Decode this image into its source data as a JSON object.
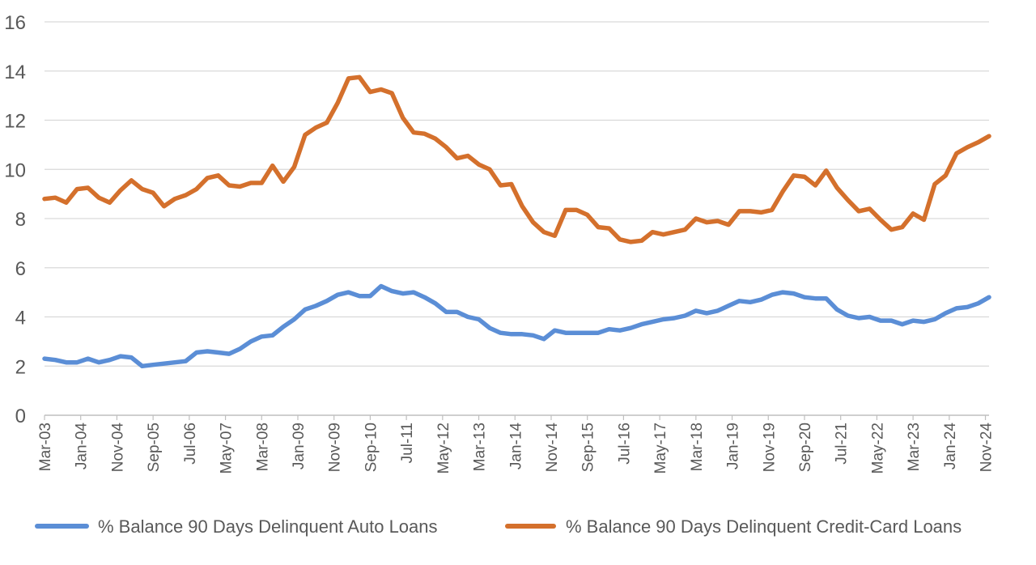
{
  "chart_data": {
    "type": "line",
    "title": "",
    "xlabel": "",
    "ylabel": "",
    "ylim": [
      0,
      16
    ],
    "y_ticks": [
      0,
      2,
      4,
      6,
      8,
      10,
      12,
      14,
      16
    ],
    "grid": true,
    "legend_position": "bottom",
    "x_start": "Mar-03",
    "x_end": "Dec-24",
    "x_tick_labels": [
      "Mar-03",
      "Jan-04",
      "Nov-04",
      "Sep-05",
      "Jul-06",
      "May-07",
      "Mar-08",
      "Jan-09",
      "Nov-09",
      "Sep-10",
      "Jul-11",
      "May-12",
      "Mar-13",
      "Jan-14",
      "Nov-14",
      "Sep-15",
      "Jul-16",
      "May-17",
      "Mar-18",
      "Jan-19",
      "Nov-19",
      "Sep-20",
      "Jul-21",
      "May-22",
      "Mar-23",
      "Jan-24",
      "Nov-24"
    ],
    "series": [
      {
        "name": "% Balance 90 Days Delinquent Auto Loans",
        "color": "#5B8ED6",
        "points": [
          [
            "Mar-03",
            2.3
          ],
          [
            "Jun-03",
            2.25
          ],
          [
            "Sep-03",
            2.15
          ],
          [
            "Dec-03",
            2.15
          ],
          [
            "Mar-04",
            2.3
          ],
          [
            "Jun-04",
            2.15
          ],
          [
            "Sep-04",
            2.25
          ],
          [
            "Dec-04",
            2.4
          ],
          [
            "Mar-05",
            2.35
          ],
          [
            "Jun-05",
            2.0
          ],
          [
            "Sep-05",
            2.05
          ],
          [
            "Dec-05",
            2.1
          ],
          [
            "Mar-06",
            2.15
          ],
          [
            "Jun-06",
            2.2
          ],
          [
            "Sep-06",
            2.55
          ],
          [
            "Dec-06",
            2.6
          ],
          [
            "Mar-07",
            2.55
          ],
          [
            "Jun-07",
            2.5
          ],
          [
            "Sep-07",
            2.7
          ],
          [
            "Dec-07",
            3.0
          ],
          [
            "Mar-08",
            3.2
          ],
          [
            "Jun-08",
            3.25
          ],
          [
            "Sep-08",
            3.6
          ],
          [
            "Dec-08",
            3.9
          ],
          [
            "Mar-09",
            4.3
          ],
          [
            "Jun-09",
            4.45
          ],
          [
            "Sep-09",
            4.65
          ],
          [
            "Dec-09",
            4.9
          ],
          [
            "Mar-10",
            5.0
          ],
          [
            "Jun-10",
            4.85
          ],
          [
            "Sep-10",
            4.85
          ],
          [
            "Dec-10",
            5.25
          ],
          [
            "Mar-11",
            5.05
          ],
          [
            "Jun-11",
            4.95
          ],
          [
            "Sep-11",
            5.0
          ],
          [
            "Dec-11",
            4.8
          ],
          [
            "Mar-12",
            4.55
          ],
          [
            "Jun-12",
            4.2
          ],
          [
            "Sep-12",
            4.2
          ],
          [
            "Dec-12",
            4.0
          ],
          [
            "Mar-13",
            3.9
          ],
          [
            "Jun-13",
            3.55
          ],
          [
            "Sep-13",
            3.35
          ],
          [
            "Dec-13",
            3.3
          ],
          [
            "Mar-14",
            3.3
          ],
          [
            "Jun-14",
            3.25
          ],
          [
            "Sep-14",
            3.1
          ],
          [
            "Dec-14",
            3.45
          ],
          [
            "Mar-15",
            3.35
          ],
          [
            "Jun-15",
            3.35
          ],
          [
            "Sep-15",
            3.35
          ],
          [
            "Dec-15",
            3.35
          ],
          [
            "Mar-16",
            3.5
          ],
          [
            "Jun-16",
            3.45
          ],
          [
            "Sep-16",
            3.55
          ],
          [
            "Dec-16",
            3.7
          ],
          [
            "Mar-17",
            3.8
          ],
          [
            "Jun-17",
            3.9
          ],
          [
            "Sep-17",
            3.95
          ],
          [
            "Dec-17",
            4.05
          ],
          [
            "Mar-18",
            4.25
          ],
          [
            "Jun-18",
            4.15
          ],
          [
            "Sep-18",
            4.25
          ],
          [
            "Dec-18",
            4.45
          ],
          [
            "Mar-19",
            4.65
          ],
          [
            "Jun-19",
            4.6
          ],
          [
            "Sep-19",
            4.7
          ],
          [
            "Dec-19",
            4.9
          ],
          [
            "Mar-20",
            5.0
          ],
          [
            "Jun-20",
            4.95
          ],
          [
            "Sep-20",
            4.8
          ],
          [
            "Dec-20",
            4.75
          ],
          [
            "Mar-21",
            4.75
          ],
          [
            "Jun-21",
            4.3
          ],
          [
            "Sep-21",
            4.05
          ],
          [
            "Dec-21",
            3.95
          ],
          [
            "Mar-22",
            4.0
          ],
          [
            "Jun-22",
            3.85
          ],
          [
            "Sep-22",
            3.85
          ],
          [
            "Dec-22",
            3.7
          ],
          [
            "Mar-23",
            3.85
          ],
          [
            "Jun-23",
            3.8
          ],
          [
            "Sep-23",
            3.9
          ],
          [
            "Dec-23",
            4.15
          ],
          [
            "Mar-24",
            4.35
          ],
          [
            "Jun-24",
            4.4
          ],
          [
            "Sep-24",
            4.55
          ],
          [
            "Dec-24",
            4.8
          ]
        ]
      },
      {
        "name": "% Balance 90 Days Delinquent Credit-Card Loans",
        "color": "#D4702C",
        "points": [
          [
            "Mar-03",
            8.8
          ],
          [
            "Jun-03",
            8.85
          ],
          [
            "Sep-03",
            8.65
          ],
          [
            "Dec-03",
            9.2
          ],
          [
            "Mar-04",
            9.25
          ],
          [
            "Jun-04",
            8.85
          ],
          [
            "Sep-04",
            8.65
          ],
          [
            "Dec-04",
            9.15
          ],
          [
            "Mar-05",
            9.55
          ],
          [
            "Jun-05",
            9.2
          ],
          [
            "Sep-05",
            9.05
          ],
          [
            "Dec-05",
            8.5
          ],
          [
            "Mar-06",
            8.8
          ],
          [
            "Jun-06",
            8.95
          ],
          [
            "Sep-06",
            9.2
          ],
          [
            "Dec-06",
            9.65
          ],
          [
            "Mar-07",
            9.75
          ],
          [
            "Jun-07",
            9.35
          ],
          [
            "Sep-07",
            9.3
          ],
          [
            "Dec-07",
            9.45
          ],
          [
            "Mar-08",
            9.45
          ],
          [
            "Jun-08",
            10.15
          ],
          [
            "Sep-08",
            9.5
          ],
          [
            "Dec-08",
            10.1
          ],
          [
            "Mar-09",
            11.4
          ],
          [
            "Jun-09",
            11.7
          ],
          [
            "Sep-09",
            11.9
          ],
          [
            "Dec-09",
            12.7
          ],
          [
            "Mar-10",
            13.7
          ],
          [
            "Jun-10",
            13.75
          ],
          [
            "Sep-10",
            13.15
          ],
          [
            "Dec-10",
            13.25
          ],
          [
            "Mar-11",
            13.1
          ],
          [
            "Jun-11",
            12.1
          ],
          [
            "Sep-11",
            11.5
          ],
          [
            "Dec-11",
            11.45
          ],
          [
            "Mar-12",
            11.25
          ],
          [
            "Jun-12",
            10.9
          ],
          [
            "Sep-12",
            10.45
          ],
          [
            "Dec-12",
            10.55
          ],
          [
            "Mar-13",
            10.2
          ],
          [
            "Jun-13",
            10.0
          ],
          [
            "Sep-13",
            9.35
          ],
          [
            "Dec-13",
            9.4
          ],
          [
            "Mar-14",
            8.5
          ],
          [
            "Jun-14",
            7.85
          ],
          [
            "Sep-14",
            7.45
          ],
          [
            "Dec-14",
            7.3
          ],
          [
            "Mar-15",
            8.35
          ],
          [
            "Jun-15",
            8.35
          ],
          [
            "Sep-15",
            8.15
          ],
          [
            "Dec-15",
            7.65
          ],
          [
            "Mar-16",
            7.6
          ],
          [
            "Jun-16",
            7.15
          ],
          [
            "Sep-16",
            7.05
          ],
          [
            "Dec-16",
            7.1
          ],
          [
            "Mar-17",
            7.45
          ],
          [
            "Jun-17",
            7.35
          ],
          [
            "Sep-17",
            7.45
          ],
          [
            "Dec-17",
            7.55
          ],
          [
            "Mar-18",
            8.0
          ],
          [
            "Jun-18",
            7.85
          ],
          [
            "Sep-18",
            7.9
          ],
          [
            "Dec-18",
            7.75
          ],
          [
            "Mar-19",
            8.3
          ],
          [
            "Jun-19",
            8.3
          ],
          [
            "Sep-19",
            8.25
          ],
          [
            "Dec-19",
            8.35
          ],
          [
            "Mar-20",
            9.1
          ],
          [
            "Jun-20",
            9.75
          ],
          [
            "Sep-20",
            9.7
          ],
          [
            "Dec-20",
            9.35
          ],
          [
            "Mar-21",
            9.95
          ],
          [
            "Jun-21",
            9.25
          ],
          [
            "Sep-21",
            8.75
          ],
          [
            "Dec-21",
            8.3
          ],
          [
            "Mar-22",
            8.4
          ],
          [
            "Jun-22",
            7.95
          ],
          [
            "Sep-22",
            7.55
          ],
          [
            "Dec-22",
            7.65
          ],
          [
            "Mar-23",
            8.2
          ],
          [
            "Jun-23",
            7.95
          ],
          [
            "Sep-23",
            9.4
          ],
          [
            "Dec-23",
            9.75
          ],
          [
            "Mar-24",
            10.65
          ],
          [
            "Jun-24",
            10.9
          ],
          [
            "Sep-24",
            11.1
          ],
          [
            "Dec-24",
            11.35
          ]
        ]
      }
    ]
  }
}
